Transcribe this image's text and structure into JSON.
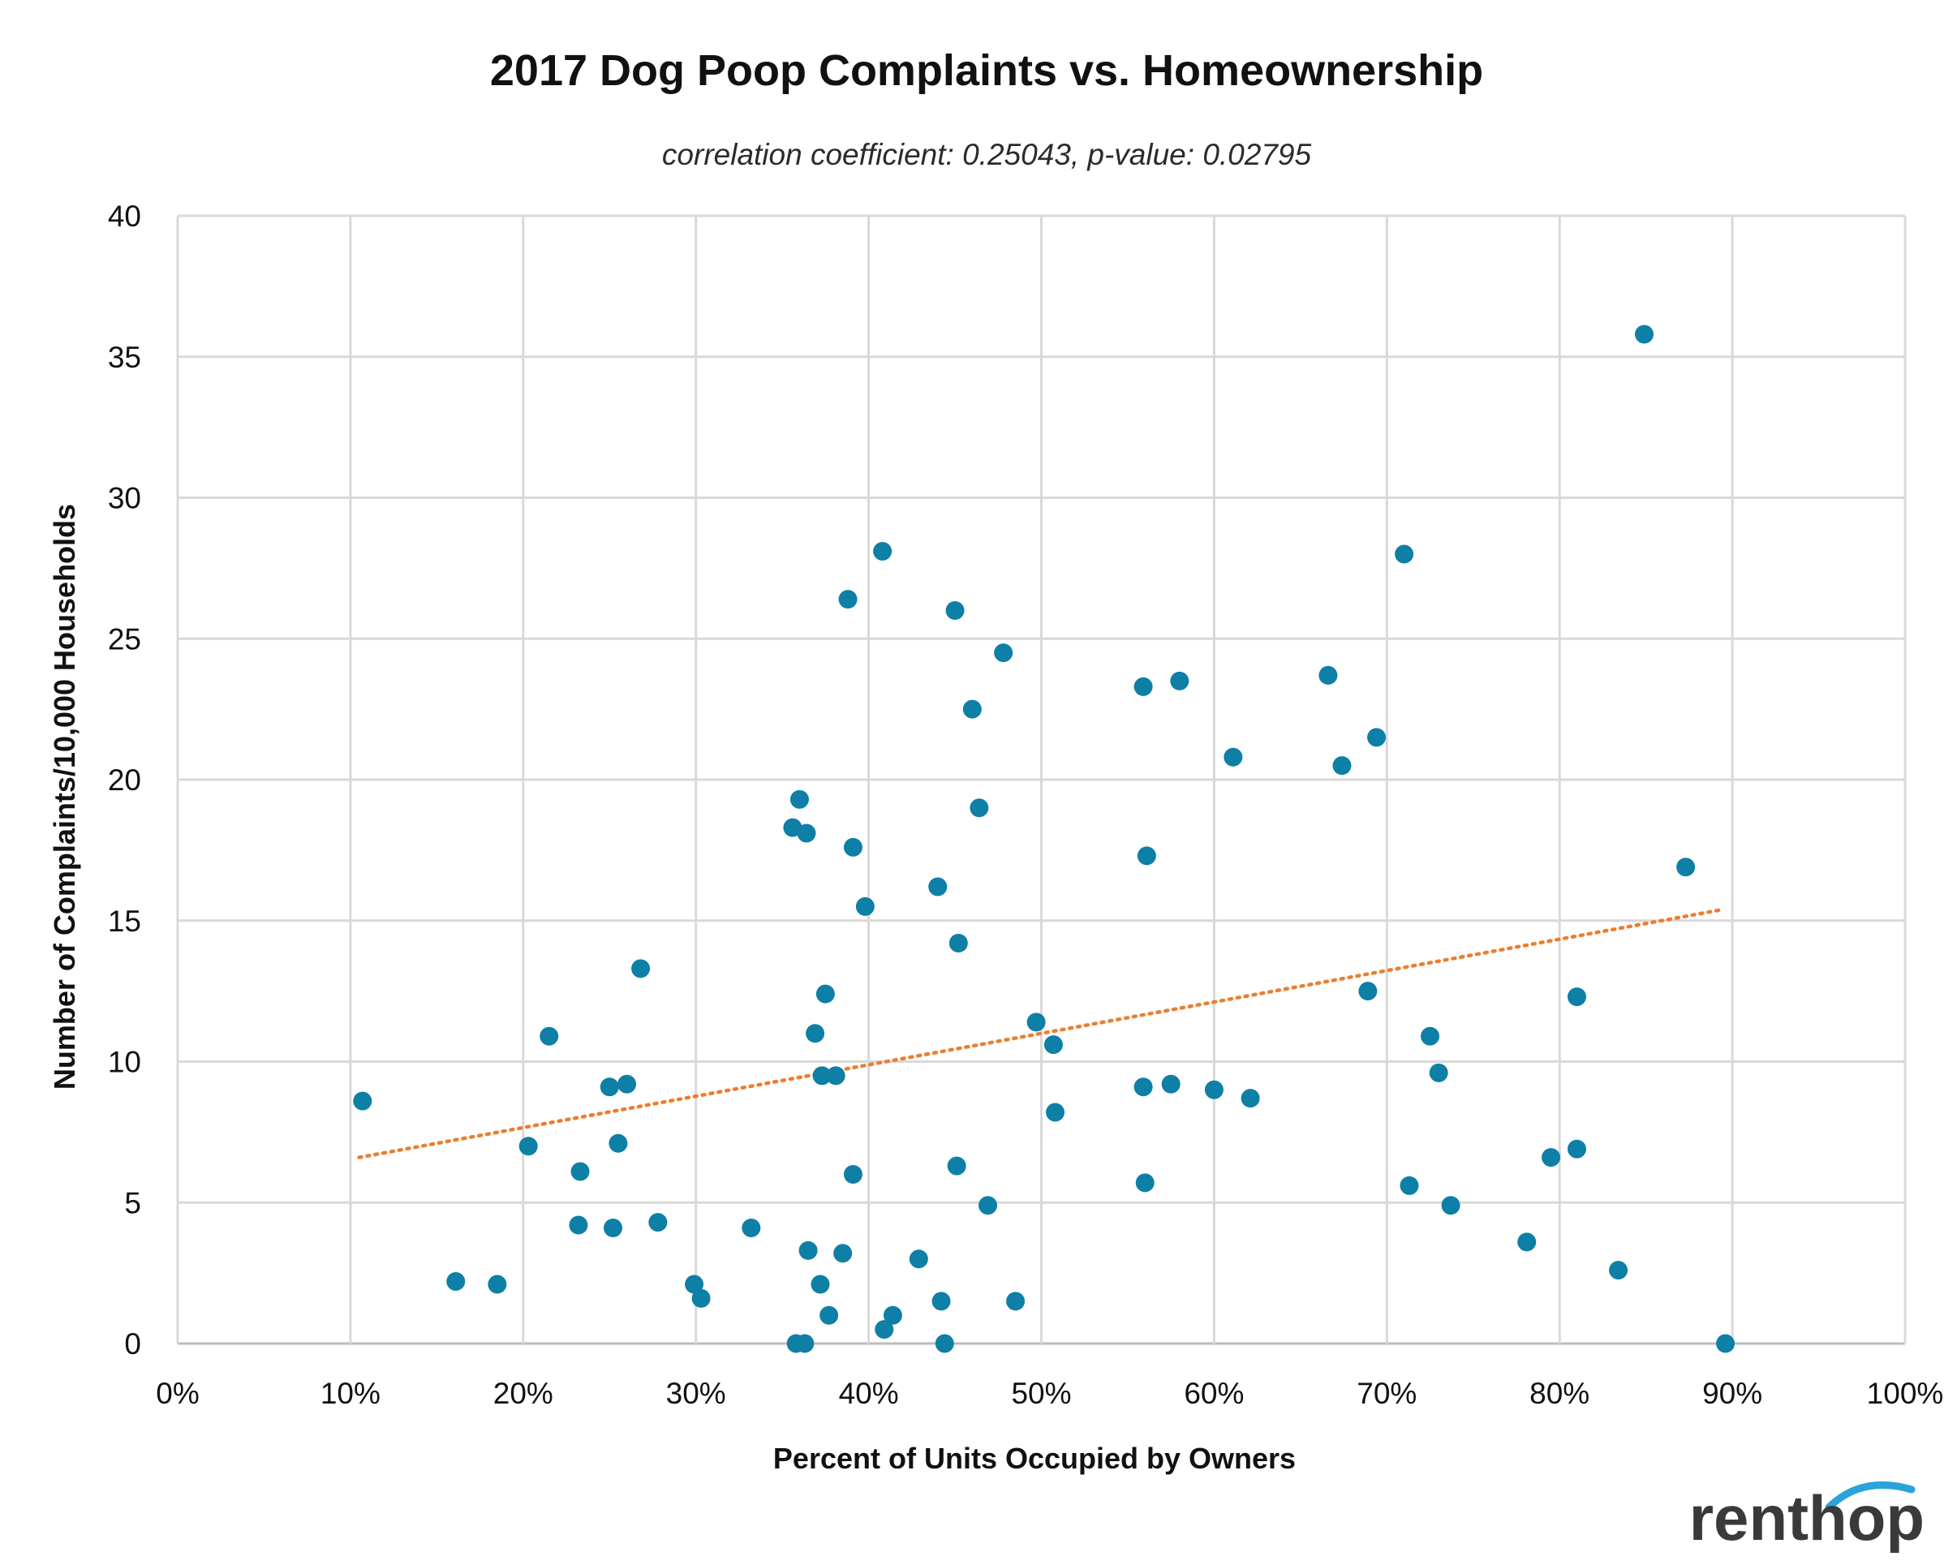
{
  "chart_data": {
    "type": "scatter",
    "title": "2017 Dog Poop Complaints vs. Homeownership",
    "subtitle": "correlation coefficient: 0.25043, p-value: 0.02795",
    "xlabel": "Percent of Units Occupied by Owners",
    "ylabel": "Number of Complaints/10,000 Households",
    "xlim": [
      0,
      1
    ],
    "ylim": [
      0,
      40
    ],
    "x_ticks": [
      0,
      0.1,
      0.2,
      0.3,
      0.4,
      0.5,
      0.6,
      0.7,
      0.8,
      0.9,
      1.0
    ],
    "x_tick_labels": [
      "0%",
      "10%",
      "20%",
      "30%",
      "40%",
      "50%",
      "60%",
      "70%",
      "80%",
      "90%",
      "100%"
    ],
    "y_ticks": [
      0,
      5,
      10,
      15,
      20,
      25,
      30,
      35,
      40
    ],
    "y_tick_labels": [
      "0",
      "5",
      "10",
      "15",
      "20",
      "25",
      "30",
      "35",
      "40"
    ],
    "grid": true,
    "point_color": "#0e7fa6",
    "trendline": {
      "style": "dotted",
      "color": "#ed7d31",
      "x": [
        0.105,
        0.895
      ],
      "y": [
        6.6,
        15.4
      ]
    },
    "points": [
      [
        0.107,
        8.6
      ],
      [
        0.161,
        2.2
      ],
      [
        0.185,
        2.1
      ],
      [
        0.203,
        7.0
      ],
      [
        0.215,
        10.9
      ],
      [
        0.232,
        4.2
      ],
      [
        0.233,
        6.1
      ],
      [
        0.25,
        9.1
      ],
      [
        0.252,
        4.1
      ],
      [
        0.255,
        7.1
      ],
      [
        0.26,
        9.2
      ],
      [
        0.268,
        13.3
      ],
      [
        0.278,
        4.3
      ],
      [
        0.299,
        2.1
      ],
      [
        0.303,
        1.6
      ],
      [
        0.332,
        4.1
      ],
      [
        0.356,
        18.3
      ],
      [
        0.358,
        0.0
      ],
      [
        0.36,
        19.3
      ],
      [
        0.363,
        0.0
      ],
      [
        0.364,
        18.1
      ],
      [
        0.365,
        3.3
      ],
      [
        0.369,
        11.0
      ],
      [
        0.372,
        2.1
      ],
      [
        0.373,
        9.5
      ],
      [
        0.375,
        12.4
      ],
      [
        0.377,
        1.0
      ],
      [
        0.381,
        9.5
      ],
      [
        0.385,
        3.2
      ],
      [
        0.388,
        26.4
      ],
      [
        0.391,
        6.0
      ],
      [
        0.391,
        17.6
      ],
      [
        0.398,
        15.5
      ],
      [
        0.408,
        28.1
      ],
      [
        0.409,
        0.5
      ],
      [
        0.414,
        1.0
      ],
      [
        0.429,
        3.0
      ],
      [
        0.44,
        16.2
      ],
      [
        0.442,
        1.5
      ],
      [
        0.444,
        0.0
      ],
      [
        0.45,
        26.0
      ],
      [
        0.451,
        6.3
      ],
      [
        0.452,
        14.2
      ],
      [
        0.46,
        22.5
      ],
      [
        0.464,
        19.0
      ],
      [
        0.469,
        4.9
      ],
      [
        0.478,
        24.5
      ],
      [
        0.485,
        1.5
      ],
      [
        0.497,
        11.4
      ],
      [
        0.507,
        10.6
      ],
      [
        0.508,
        8.2
      ],
      [
        0.559,
        23.3
      ],
      [
        0.559,
        9.1
      ],
      [
        0.56,
        5.7
      ],
      [
        0.561,
        17.3
      ],
      [
        0.575,
        9.2
      ],
      [
        0.58,
        23.5
      ],
      [
        0.6,
        9.0
      ],
      [
        0.611,
        20.8
      ],
      [
        0.621,
        8.7
      ],
      [
        0.666,
        23.7
      ],
      [
        0.674,
        20.5
      ],
      [
        0.689,
        12.5
      ],
      [
        0.694,
        21.5
      ],
      [
        0.71,
        28.0
      ],
      [
        0.713,
        5.6
      ],
      [
        0.725,
        10.9
      ],
      [
        0.73,
        9.6
      ],
      [
        0.737,
        4.9
      ],
      [
        0.781,
        3.6
      ],
      [
        0.795,
        6.6
      ],
      [
        0.81,
        12.3
      ],
      [
        0.81,
        6.9
      ],
      [
        0.834,
        2.6
      ],
      [
        0.849,
        35.8
      ],
      [
        0.873,
        16.9
      ],
      [
        0.896,
        0.0
      ]
    ]
  },
  "brand": {
    "logo_text": "renthop",
    "text_color": "#3a3a3a",
    "arc_color": "#2aa3dc"
  }
}
